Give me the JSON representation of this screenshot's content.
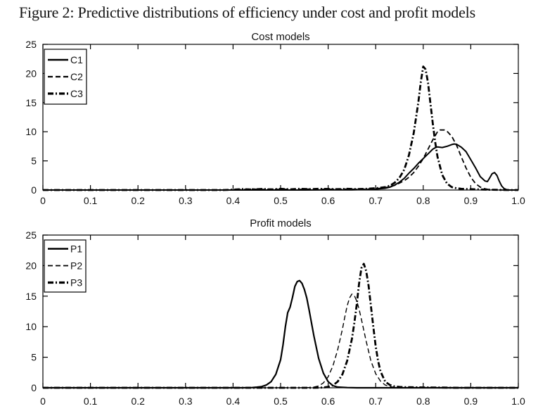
{
  "figure": {
    "caption": "Figure 2: Predictive distributions of efficiency under cost and profit models"
  },
  "colors": {
    "stroke": "#000000",
    "background": "#ffffff",
    "text": "#141414"
  },
  "chart_data": [
    {
      "type": "line",
      "title": "Cost models",
      "xlabel": "",
      "ylabel": "",
      "xlim": [
        0,
        1
      ],
      "ylim": [
        0,
        25
      ],
      "grid": false,
      "legend_position": "northwest",
      "x_tick_values": [
        0,
        0.1,
        0.2,
        0.3,
        0.4,
        0.5,
        0.6,
        0.7,
        0.8,
        0.9,
        1.0
      ],
      "x_tick_labels": [
        "0",
        "0.1",
        "0.2",
        "0.3",
        "0.4",
        "0.5",
        "0.6",
        "0.7",
        "0.8",
        "0.9",
        "1.0"
      ],
      "y_tick_values": [
        0,
        5,
        10,
        15,
        20,
        25
      ],
      "y_tick_labels": [
        "0",
        "5",
        "10",
        "15",
        "20",
        "25"
      ],
      "series": [
        {
          "name": "C1",
          "line_style": "solid",
          "line_width": 2,
          "color": "#000000",
          "points": [
            [
              0,
              0
            ],
            [
              0.55,
              0
            ],
            [
              0.6,
              0.02
            ],
            [
              0.65,
              0.04
            ],
            [
              0.68,
              0.08
            ],
            [
              0.7,
              0.15
            ],
            [
              0.72,
              0.3
            ],
            [
              0.73,
              0.5
            ],
            [
              0.74,
              0.85
            ],
            [
              0.75,
              1.35
            ],
            [
              0.76,
              2
            ],
            [
              0.77,
              2.9
            ],
            [
              0.78,
              3.7
            ],
            [
              0.79,
              4.6
            ],
            [
              0.8,
              5.4
            ],
            [
              0.81,
              6.2
            ],
            [
              0.82,
              7
            ],
            [
              0.825,
              7.25
            ],
            [
              0.83,
              7.4
            ],
            [
              0.84,
              7.3
            ],
            [
              0.85,
              7.5
            ],
            [
              0.86,
              7.8
            ],
            [
              0.865,
              7.9
            ],
            [
              0.87,
              7.85
            ],
            [
              0.88,
              7.35
            ],
            [
              0.89,
              6.6
            ],
            [
              0.9,
              5.2
            ],
            [
              0.91,
              3.8
            ],
            [
              0.92,
              2.3
            ],
            [
              0.93,
              1.55
            ],
            [
              0.935,
              1.45
            ],
            [
              0.94,
              2.1
            ],
            [
              0.945,
              2.8
            ],
            [
              0.95,
              3
            ],
            [
              0.955,
              2.5
            ],
            [
              0.96,
              1.5
            ],
            [
              0.965,
              0.7
            ],
            [
              0.97,
              0.25
            ],
            [
              0.975,
              0.08
            ],
            [
              0.98,
              0
            ],
            [
              1,
              0
            ]
          ]
        },
        {
          "name": "C2",
          "line_style": "dashed",
          "line_width": 1.8,
          "color": "#000000",
          "points": [
            [
              0,
              0
            ],
            [
              0.4,
              0
            ],
            [
              0.42,
              0.1
            ],
            [
              0.44,
              0.18
            ],
            [
              0.46,
              0.1
            ],
            [
              0.48,
              0.16
            ],
            [
              0.5,
              0.1
            ],
            [
              0.52,
              0.16
            ],
            [
              0.54,
              0.1
            ],
            [
              0.56,
              0.16
            ],
            [
              0.58,
              0.1
            ],
            [
              0.6,
              0.16
            ],
            [
              0.62,
              0.12
            ],
            [
              0.64,
              0.16
            ],
            [
              0.66,
              0.12
            ],
            [
              0.68,
              0.16
            ],
            [
              0.7,
              0.22
            ],
            [
              0.72,
              0.4
            ],
            [
              0.74,
              0.8
            ],
            [
              0.76,
              1.6
            ],
            [
              0.77,
              2.2
            ],
            [
              0.78,
              3
            ],
            [
              0.79,
              4.1
            ],
            [
              0.8,
              5.4
            ],
            [
              0.81,
              7
            ],
            [
              0.82,
              8.6
            ],
            [
              0.83,
              10
            ],
            [
              0.835,
              10.3
            ],
            [
              0.845,
              10.3
            ],
            [
              0.85,
              10.1
            ],
            [
              0.86,
              9.2
            ],
            [
              0.87,
              7.7
            ],
            [
              0.88,
              5.7
            ],
            [
              0.89,
              3.8
            ],
            [
              0.9,
              2.2
            ],
            [
              0.91,
              1.1
            ],
            [
              0.92,
              0.5
            ],
            [
              0.93,
              0.2
            ],
            [
              0.94,
              0.06
            ],
            [
              0.96,
              0
            ],
            [
              1,
              0
            ]
          ]
        },
        {
          "name": "C3",
          "line_style": "dashdot",
          "line_width": 2.8,
          "color": "#000000",
          "points": [
            [
              0,
              0
            ],
            [
              0.38,
              0
            ],
            [
              0.4,
              0.06
            ],
            [
              0.42,
              0.16
            ],
            [
              0.44,
              0.08
            ],
            [
              0.46,
              0.18
            ],
            [
              0.48,
              0.1
            ],
            [
              0.5,
              0.2
            ],
            [
              0.52,
              0.12
            ],
            [
              0.54,
              0.2
            ],
            [
              0.56,
              0.14
            ],
            [
              0.58,
              0.2
            ],
            [
              0.6,
              0.18
            ],
            [
              0.62,
              0.14
            ],
            [
              0.64,
              0.2
            ],
            [
              0.66,
              0.16
            ],
            [
              0.68,
              0.2
            ],
            [
              0.7,
              0.3
            ],
            [
              0.72,
              0.5
            ],
            [
              0.73,
              0.75
            ],
            [
              0.74,
              1.25
            ],
            [
              0.75,
              2.1
            ],
            [
              0.76,
              3.5
            ],
            [
              0.77,
              6
            ],
            [
              0.78,
              9.8
            ],
            [
              0.785,
              12.5
            ],
            [
              0.79,
              15.2
            ],
            [
              0.795,
              18.6
            ],
            [
              0.8,
              21.2
            ],
            [
              0.805,
              20.7
            ],
            [
              0.81,
              18.4
            ],
            [
              0.815,
              15
            ],
            [
              0.82,
              11.5
            ],
            [
              0.825,
              8.3
            ],
            [
              0.83,
              5.7
            ],
            [
              0.84,
              2.6
            ],
            [
              0.85,
              1.1
            ],
            [
              0.86,
              0.5
            ],
            [
              0.87,
              0.3
            ],
            [
              0.88,
              0.2
            ],
            [
              0.9,
              0.15
            ],
            [
              0.92,
              0.1
            ],
            [
              0.94,
              0.05
            ],
            [
              0.96,
              0.02
            ],
            [
              0.98,
              0
            ],
            [
              1,
              0
            ]
          ]
        }
      ]
    },
    {
      "type": "line",
      "title": "Profit models",
      "xlabel": "",
      "ylabel": "",
      "xlim": [
        0,
        1
      ],
      "ylim": [
        0,
        25
      ],
      "grid": false,
      "legend_position": "northwest",
      "x_tick_values": [
        0,
        0.1,
        0.2,
        0.3,
        0.4,
        0.5,
        0.6,
        0.7,
        0.8,
        0.9,
        1.0
      ],
      "x_tick_labels": [
        "0",
        "0.1",
        "0.2",
        "0.3",
        "0.4",
        "0.5",
        "0.6",
        "0.7",
        "0.8",
        "0.9",
        "1.0"
      ],
      "y_tick_values": [
        0,
        5,
        10,
        15,
        20,
        25
      ],
      "y_tick_labels": [
        "0",
        "5",
        "10",
        "15",
        "20",
        "25"
      ],
      "series": [
        {
          "name": "P1",
          "line_style": "solid",
          "line_width": 2.2,
          "color": "#000000",
          "points": [
            [
              0,
              0
            ],
            [
              0.42,
              0
            ],
            [
              0.44,
              0.04
            ],
            [
              0.45,
              0.1
            ],
            [
              0.46,
              0.2
            ],
            [
              0.47,
              0.45
            ],
            [
              0.48,
              1
            ],
            [
              0.49,
              2.2
            ],
            [
              0.5,
              4.6
            ],
            [
              0.505,
              7
            ],
            [
              0.51,
              10
            ],
            [
              0.515,
              12.3
            ],
            [
              0.52,
              13.2
            ],
            [
              0.525,
              14.8
            ],
            [
              0.53,
              16.6
            ],
            [
              0.535,
              17.4
            ],
            [
              0.54,
              17.55
            ],
            [
              0.545,
              17.1
            ],
            [
              0.55,
              16.1
            ],
            [
              0.555,
              14.7
            ],
            [
              0.56,
              12.7
            ],
            [
              0.57,
              8.5
            ],
            [
              0.58,
              4.8
            ],
            [
              0.59,
              2.4
            ],
            [
              0.6,
              1
            ],
            [
              0.61,
              0.35
            ],
            [
              0.62,
              0.12
            ],
            [
              0.64,
              0.03
            ],
            [
              0.66,
              0
            ],
            [
              1,
              0
            ]
          ]
        },
        {
          "name": "P2",
          "line_style": "dashed",
          "line_width": 1.4,
          "color": "#000000",
          "points": [
            [
              0,
              0
            ],
            [
              0.54,
              0
            ],
            [
              0.56,
              0.05
            ],
            [
              0.57,
              0.12
            ],
            [
              0.58,
              0.3
            ],
            [
              0.59,
              0.8
            ],
            [
              0.6,
              1.8
            ],
            [
              0.61,
              3.6
            ],
            [
              0.62,
              6.2
            ],
            [
              0.63,
              9.6
            ],
            [
              0.635,
              11.6
            ],
            [
              0.64,
              13.4
            ],
            [
              0.645,
              14.7
            ],
            [
              0.65,
              15.35
            ],
            [
              0.655,
              15.1
            ],
            [
              0.66,
              14.2
            ],
            [
              0.665,
              12.9
            ],
            [
              0.67,
              11.2
            ],
            [
              0.68,
              7.6
            ],
            [
              0.69,
              4.4
            ],
            [
              0.7,
              2.3
            ],
            [
              0.71,
              1.1
            ],
            [
              0.72,
              0.45
            ],
            [
              0.73,
              0.18
            ],
            [
              0.74,
              0.08
            ],
            [
              0.76,
              0.02
            ],
            [
              0.78,
              0
            ],
            [
              1,
              0
            ]
          ]
        },
        {
          "name": "P3",
          "line_style": "dashdot",
          "line_width": 2.8,
          "color": "#000000",
          "points": [
            [
              0,
              0
            ],
            [
              0.57,
              0
            ],
            [
              0.59,
              0.05
            ],
            [
              0.6,
              0.15
            ],
            [
              0.61,
              0.4
            ],
            [
              0.62,
              1
            ],
            [
              0.63,
              2.2
            ],
            [
              0.64,
              4.4
            ],
            [
              0.65,
              8
            ],
            [
              0.655,
              10.6
            ],
            [
              0.66,
              13.6
            ],
            [
              0.665,
              17
            ],
            [
              0.67,
              19.6
            ],
            [
              0.675,
              20.3
            ],
            [
              0.68,
              19.1
            ],
            [
              0.685,
              16.7
            ],
            [
              0.69,
              13.4
            ],
            [
              0.695,
              10
            ],
            [
              0.7,
              6.8
            ],
            [
              0.705,
              4.4
            ],
            [
              0.71,
              2.7
            ],
            [
              0.72,
              1
            ],
            [
              0.73,
              0.45
            ],
            [
              0.74,
              0.22
            ],
            [
              0.75,
              0.14
            ],
            [
              0.76,
              0.1
            ],
            [
              0.78,
              0.08
            ],
            [
              0.8,
              0.06
            ],
            [
              0.82,
              0.05
            ],
            [
              0.84,
              0.03
            ],
            [
              0.86,
              0.01
            ],
            [
              0.88,
              0
            ],
            [
              1,
              0
            ]
          ]
        }
      ]
    }
  ]
}
